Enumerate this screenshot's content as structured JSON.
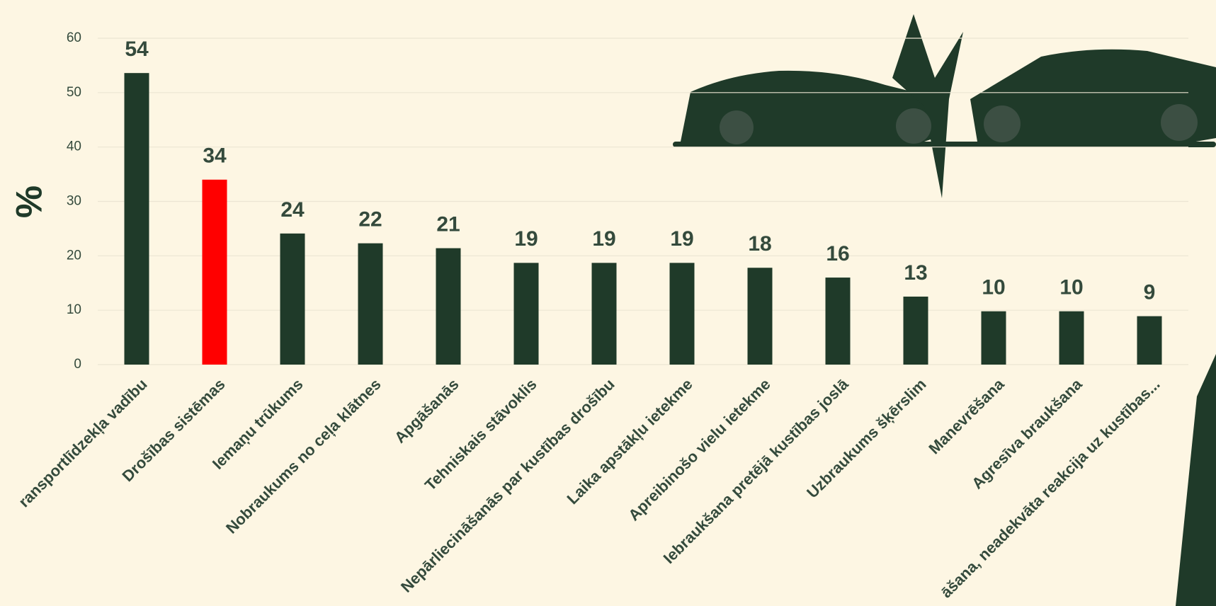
{
  "chart_data": {
    "type": "bar",
    "y_label": "%",
    "categories": [
      "ransportlīdzekļa vadību",
      "Drošības sistēmas",
      "Iemaņu trūkums",
      "Nobraukums no ceļa klātnes",
      "Apgāšanās",
      "Tehniskais stāvoklis",
      "Nepārliecināšanās par kustības drošību",
      "Laika apstākļu ietekme",
      "Apreibinošo vielu ietekme",
      "Iebraukšana pretējā kustības joslā",
      "Uzbraukums šķērslim",
      "Manevrēšana",
      "Agresīva braukšana",
      "āšana, neadekvāta reakcija uz kustības..."
    ],
    "values": [
      53.6,
      34,
      24.1,
      22.3,
      21.4,
      18.7,
      18.7,
      18.7,
      17.8,
      16,
      12.5,
      9.8,
      9.8,
      8.9
    ],
    "value_labels": [
      "54",
      "34",
      "24",
      "22",
      "21",
      "19",
      "19",
      "19",
      "18",
      "16",
      "13",
      "10",
      "10",
      "9"
    ],
    "colors": [
      "#1f3a29",
      "#ff0000",
      "#1f3a29",
      "#1f3a29",
      "#1f3a29",
      "#1f3a29",
      "#1f3a29",
      "#1f3a29",
      "#1f3a29",
      "#1f3a29",
      "#1f3a29",
      "#1f3a29",
      "#1f3a29",
      "#1f3a29"
    ],
    "ylim": [
      0,
      60
    ],
    "yticks": [
      0,
      10,
      20,
      30,
      40,
      50,
      60
    ],
    "grid": true
  }
}
